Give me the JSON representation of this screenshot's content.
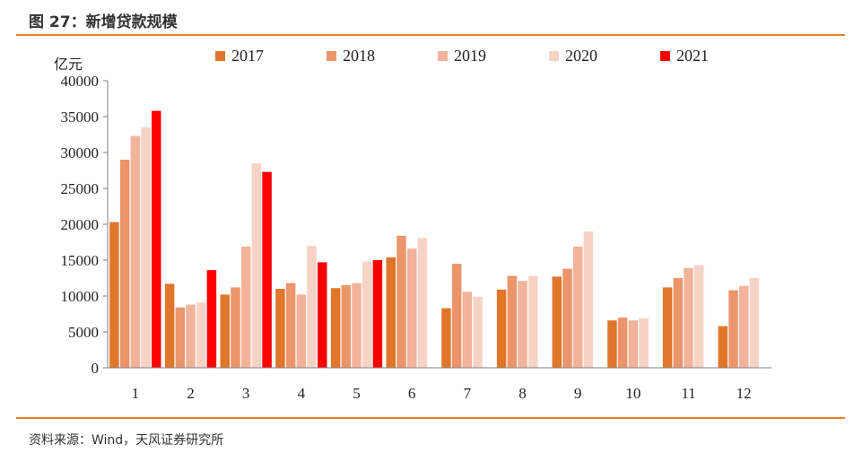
{
  "figure": {
    "title": "图 27：新增贷款规模",
    "source": "资料来源：Wind，天风证券研究所"
  },
  "colors": {
    "rule": "#e67e2e",
    "series": [
      "#e0762a",
      "#ec956b",
      "#f2b39a",
      "#f7d3c6",
      "#ff0000"
    ]
  },
  "chart_data": {
    "type": "bar",
    "ylabel": "亿元",
    "xlabel": "",
    "ylim": [
      0,
      40000
    ],
    "yticks": [
      0,
      5000,
      10000,
      15000,
      20000,
      25000,
      30000,
      35000,
      40000
    ],
    "categories": [
      "1",
      "2",
      "3",
      "4",
      "5",
      "6",
      "7",
      "8",
      "9",
      "10",
      "11",
      "12"
    ],
    "legend_position": "top",
    "grid": false,
    "series": [
      {
        "name": "2017",
        "values": [
          20300,
          11700,
          10200,
          11000,
          11100,
          15400,
          8300,
          10900,
          12700,
          6600,
          11200,
          5800
        ]
      },
      {
        "name": "2018",
        "values": [
          29000,
          8400,
          11200,
          11800,
          11500,
          18400,
          14500,
          12800,
          13800,
          7000,
          12500,
          10800
        ]
      },
      {
        "name": "2019",
        "values": [
          32300,
          8800,
          16900,
          10200,
          11800,
          16600,
          10600,
          12100,
          16900,
          6600,
          13900,
          11400
        ]
      },
      {
        "name": "2020",
        "values": [
          33500,
          9100,
          28500,
          17000,
          14800,
          18100,
          9900,
          12800,
          19000,
          6900,
          14300,
          12500
        ]
      },
      {
        "name": "2021",
        "values": [
          35800,
          13600,
          27300,
          14700,
          15000,
          null,
          null,
          null,
          null,
          null,
          null,
          null
        ]
      }
    ]
  }
}
